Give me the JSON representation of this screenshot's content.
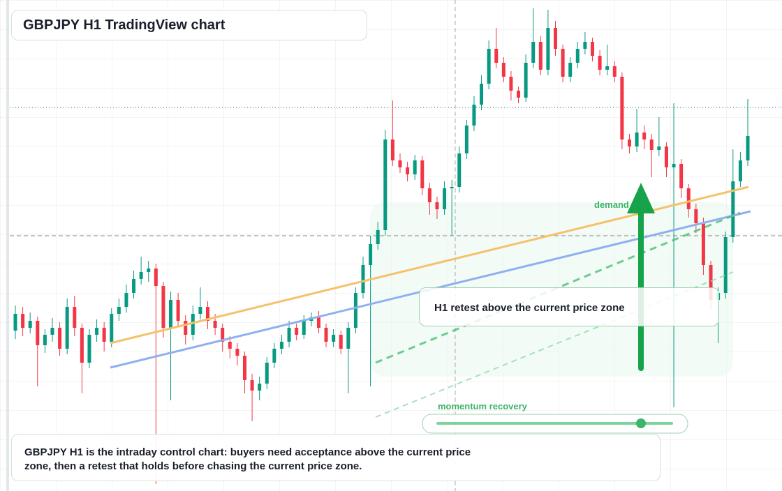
{
  "chart_data": {
    "type": "candlestick",
    "title": "GBPJPY H1 TradingView chart",
    "zone_label": "demand side",
    "callout": "H1 retest above the current price zone",
    "momentum_label": "momentum recovery",
    "caption": "GBPJPY H1 is the intraday control chart: buyers need acceptance above the current price zone, then a retest that holds before chasing the current price zone.",
    "up_color": "#089981",
    "down_color": "#f23645",
    "ylim": [
      0,
      704
    ],
    "open": [
      230,
      254,
      234,
      244,
      209,
      224,
      234,
      204,
      264,
      234,
      184,
      224,
      234,
      214,
      254,
      264,
      284,
      304,
      314,
      319,
      294,
      234,
      274,
      244,
      224,
      254,
      264,
      244,
      234,
      214,
      204,
      194,
      159,
      144,
      154,
      184,
      204,
      214,
      234,
      224,
      244,
      249,
      234,
      214,
      224,
      204,
      234,
      284,
      324,
      354,
      374,
      504,
      474,
      464,
      454,
      474,
      434,
      414,
      404,
      434,
      436,
      484,
      524,
      554,
      584,
      634,
      614,
      594,
      574,
      564,
      614,
      644,
      604,
      664,
      634,
      594,
      614,
      634,
      644,
      624,
      604,
      609,
      594,
      504,
      494,
      514,
      504,
      489,
      494,
      464,
      469,
      434,
      404,
      384,
      324,
      274,
      284,
      364,
      444,
      474
    ],
    "high": [
      266,
      264,
      256,
      250,
      232,
      248,
      242,
      276,
      280,
      240,
      232,
      246,
      242,
      262,
      276,
      296,
      316,
      336,
      330,
      326,
      300,
      286,
      284,
      252,
      266,
      292,
      272,
      254,
      240,
      222,
      212,
      200,
      168,
      164,
      192,
      212,
      224,
      244,
      240,
      252,
      256,
      258,
      240,
      232,
      230,
      242,
      292,
      336,
      366,
      386,
      518,
      560,
      484,
      472,
      482,
      480,
      442,
      422,
      444,
      446,
      494,
      532,
      566,
      596,
      646,
      664,
      622,
      602,
      580,
      626,
      692,
      652,
      690,
      674,
      640,
      622,
      644,
      658,
      650,
      632,
      640,
      616,
      600,
      512,
      548,
      524,
      512,
      536,
      500,
      556,
      476,
      440,
      412,
      392,
      330,
      292,
      372,
      490,
      486,
      562
    ],
    "low": [
      218,
      222,
      226,
      150,
      198,
      214,
      194,
      196,
      222,
      140,
      176,
      214,
      200,
      206,
      244,
      256,
      276,
      296,
      300,
      10,
      220,
      130,
      236,
      210,
      216,
      246,
      232,
      224,
      200,
      190,
      180,
      140,
      100,
      130,
      146,
      176,
      196,
      206,
      216,
      218,
      236,
      226,
      206,
      206,
      196,
      140,
      226,
      276,
      150,
      346,
      366,
      466,
      456,
      444,
      446,
      424,
      396,
      390,
      396,
      366,
      428,
      476,
      516,
      546,
      576,
      606,
      586,
      560,
      556,
      558,
      606,
      596,
      596,
      624,
      586,
      586,
      606,
      626,
      616,
      596,
      596,
      586,
      490,
      484,
      486,
      490,
      450,
      480,
      450,
      120,
      420,
      392,
      370,
      310,
      260,
      212,
      276,
      356,
      436,
      466
    ],
    "close": [
      254,
      234,
      244,
      209,
      224,
      234,
      204,
      264,
      234,
      184,
      224,
      234,
      214,
      254,
      264,
      284,
      304,
      314,
      319,
      294,
      234,
      274,
      244,
      224,
      254,
      264,
      244,
      234,
      214,
      204,
      194,
      159,
      144,
      154,
      184,
      204,
      214,
      234,
      224,
      244,
      249,
      234,
      214,
      224,
      204,
      234,
      284,
      324,
      354,
      374,
      504,
      474,
      464,
      454,
      474,
      434,
      414,
      404,
      434,
      436,
      484,
      524,
      554,
      584,
      634,
      614,
      594,
      574,
      564,
      614,
      644,
      604,
      664,
      634,
      594,
      614,
      634,
      644,
      624,
      604,
      609,
      594,
      504,
      494,
      514,
      504,
      489,
      494,
      464,
      469,
      434,
      404,
      384,
      324,
      274,
      284,
      364,
      444,
      474,
      509
    ]
  }
}
